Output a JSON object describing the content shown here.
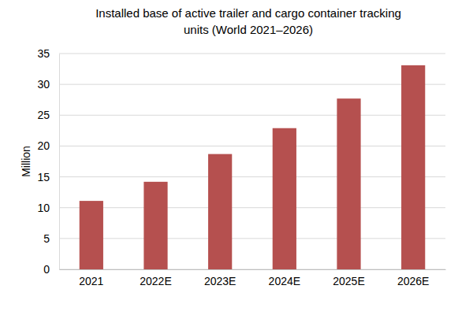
{
  "chart_data": {
    "type": "bar",
    "title": "Installed base of active trailer and cargo container tracking units (World 2021–2026)",
    "y_label": "Million",
    "categories": [
      "2021",
      "2022E",
      "2023E",
      "2024E",
      "2025E",
      "2026E"
    ],
    "values": [
      11.1,
      14.2,
      18.7,
      22.9,
      27.7,
      33.1
    ],
    "color": "#b5504f",
    "ylim": [
      0,
      35
    ],
    "yticks": [
      0,
      5,
      10,
      15,
      20,
      25,
      30,
      35
    ],
    "grid": true
  }
}
